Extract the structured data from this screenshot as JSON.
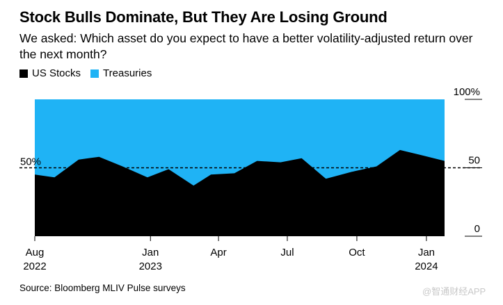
{
  "title": "Stock Bulls Dominate, But They Are Losing Ground",
  "subtitle": "We asked: Which asset do you expect to have a better volatility-adjusted return over the next month?",
  "source": "Source: Bloomberg MLIV Pulse surveys",
  "watermark": "@智通财经APP",
  "colors": {
    "stocks": "#000000",
    "treasuries": "#1fb3f5"
  },
  "chart_data": {
    "type": "area",
    "title": "Stock Bulls Dominate, But They Are Losing Ground",
    "stacked": true,
    "series": [
      {
        "name": "US Stocks",
        "color": "#000000",
        "values": [
          45,
          43,
          56,
          58,
          51,
          43,
          49,
          37,
          45,
          46,
          55,
          54,
          57,
          42,
          47,
          51,
          63,
          59,
          55
        ]
      },
      {
        "name": "Treasuries",
        "color": "#1fb3f5",
        "values": [
          55,
          57,
          44,
          42,
          49,
          57,
          51,
          63,
          55,
          54,
          45,
          46,
          43,
          58,
          53,
          49,
          37,
          41,
          45
        ]
      }
    ],
    "x": [
      "2022-08-01",
      "2022-08-27",
      "2022-09-28",
      "2022-10-25",
      "2022-11-25",
      "2022-12-28",
      "2023-01-25",
      "2023-02-27",
      "2023-03-22",
      "2023-04-22",
      "2023-05-22",
      "2023-06-22",
      "2023-07-20",
      "2023-08-21",
      "2023-09-24",
      "2023-10-27",
      "2023-11-27",
      "2023-12-27",
      "2024-01-25"
    ],
    "x_ticks": [
      {
        "date": "2022-08-01",
        "label": "Aug",
        "year": "2022"
      },
      {
        "date": "2023-01-01",
        "label": "Jan",
        "year": "2023"
      },
      {
        "date": "2023-04-01",
        "label": "Apr",
        "year": ""
      },
      {
        "date": "2023-07-01",
        "label": "Jul",
        "year": ""
      },
      {
        "date": "2023-10-01",
        "label": "Oct",
        "year": ""
      },
      {
        "date": "2024-01-01",
        "label": "Jan",
        "year": "2024"
      }
    ],
    "xlim": [
      "2022-08-01",
      "2024-01-25"
    ],
    "y_ticks": [
      {
        "value": 100,
        "label": "100%"
      },
      {
        "value": 50,
        "label": "50"
      },
      {
        "value": 0,
        "label": "0"
      }
    ],
    "ylim": [
      0,
      100
    ],
    "reference_line": {
      "value": 50,
      "label": "50%",
      "style": "dashed"
    },
    "legend": [
      "US Stocks",
      "Treasuries"
    ],
    "legend_position": "top-left"
  }
}
